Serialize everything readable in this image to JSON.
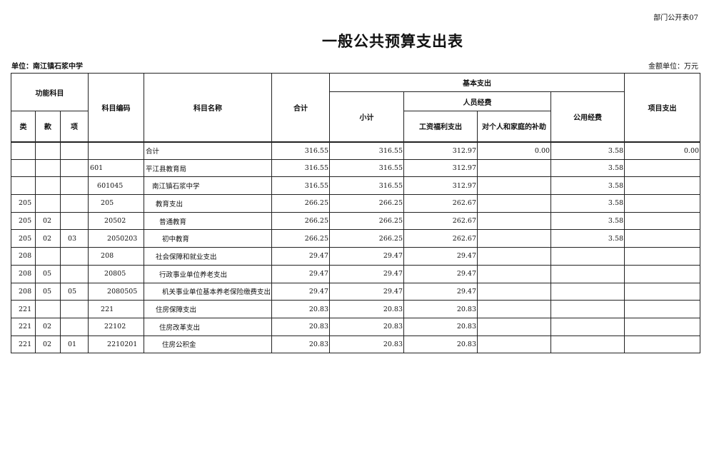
{
  "doc_tag": "部门公开表07",
  "title": "一般公共预算支出表",
  "unit_label": "单位：南江镇石浆中学",
  "money_unit": "金额单位：万元",
  "headers": {
    "func_subject": "功能科目",
    "lei": "类",
    "kuan": "款",
    "xiang": "项",
    "code": "科目编码",
    "name": "科目名称",
    "total": "合计",
    "basic": "基本支出",
    "subtotal": "小计",
    "personnel": "人员经费",
    "wages": "工资福利支出",
    "subsidy": "对个人和家庭的补助",
    "public": "公用经费",
    "project": "项目支出"
  },
  "rows": [
    {
      "lei": "",
      "kuan": "",
      "xiang": "",
      "code": "",
      "name": "合计",
      "total": "316.55",
      "subtotal": "316.55",
      "wages": "312.97",
      "subsidy": "0.00",
      "public": "3.58",
      "project": "0.00"
    },
    {
      "lei": "",
      "kuan": "",
      "xiang": "",
      "code": "601",
      "name": "平江县教育局",
      "total": "316.55",
      "subtotal": "316.55",
      "wages": "312.97",
      "subsidy": "",
      "public": "3.58",
      "project": ""
    },
    {
      "lei": "",
      "kuan": "",
      "xiang": "",
      "code": "601045",
      "name": "南江镇石浆中学",
      "total": "316.55",
      "subtotal": "316.55",
      "wages": "312.97",
      "subsidy": "",
      "public": "3.58",
      "project": ""
    },
    {
      "lei": "205",
      "kuan": "",
      "xiang": "",
      "code": "205",
      "name": "教育支出",
      "total": "266.25",
      "subtotal": "266.25",
      "wages": "262.67",
      "subsidy": "",
      "public": "3.58",
      "project": ""
    },
    {
      "lei": "205",
      "kuan": "02",
      "xiang": "",
      "code": "20502",
      "name": "普通教育",
      "total": "266.25",
      "subtotal": "266.25",
      "wages": "262.67",
      "subsidy": "",
      "public": "3.58",
      "project": ""
    },
    {
      "lei": "205",
      "kuan": "02",
      "xiang": "03",
      "code": "2050203",
      "name": "初中教育",
      "total": "266.25",
      "subtotal": "266.25",
      "wages": "262.67",
      "subsidy": "",
      "public": "3.58",
      "project": ""
    },
    {
      "lei": "208",
      "kuan": "",
      "xiang": "",
      "code": "208",
      "name": "社会保障和就业支出",
      "total": "29.47",
      "subtotal": "29.47",
      "wages": "29.47",
      "subsidy": "",
      "public": "",
      "project": ""
    },
    {
      "lei": "208",
      "kuan": "05",
      "xiang": "",
      "code": "20805",
      "name": "行政事业单位养老支出",
      "total": "29.47",
      "subtotal": "29.47",
      "wages": "29.47",
      "subsidy": "",
      "public": "",
      "project": ""
    },
    {
      "lei": "208",
      "kuan": "05",
      "xiang": "05",
      "code": "2080505",
      "name": "机关事业单位基本养老保险缴费支出",
      "total": "29.47",
      "subtotal": "29.47",
      "wages": "29.47",
      "subsidy": "",
      "public": "",
      "project": ""
    },
    {
      "lei": "221",
      "kuan": "",
      "xiang": "",
      "code": "221",
      "name": "住房保障支出",
      "total": "20.83",
      "subtotal": "20.83",
      "wages": "20.83",
      "subsidy": "",
      "public": "",
      "project": ""
    },
    {
      "lei": "221",
      "kuan": "02",
      "xiang": "",
      "code": "22102",
      "name": "住房改革支出",
      "total": "20.83",
      "subtotal": "20.83",
      "wages": "20.83",
      "subsidy": "",
      "public": "",
      "project": ""
    },
    {
      "lei": "221",
      "kuan": "02",
      "xiang": "01",
      "code": "2210201",
      "name": "住房公积金",
      "total": "20.83",
      "subtotal": "20.83",
      "wages": "20.83",
      "subsidy": "",
      "public": "",
      "project": ""
    }
  ]
}
